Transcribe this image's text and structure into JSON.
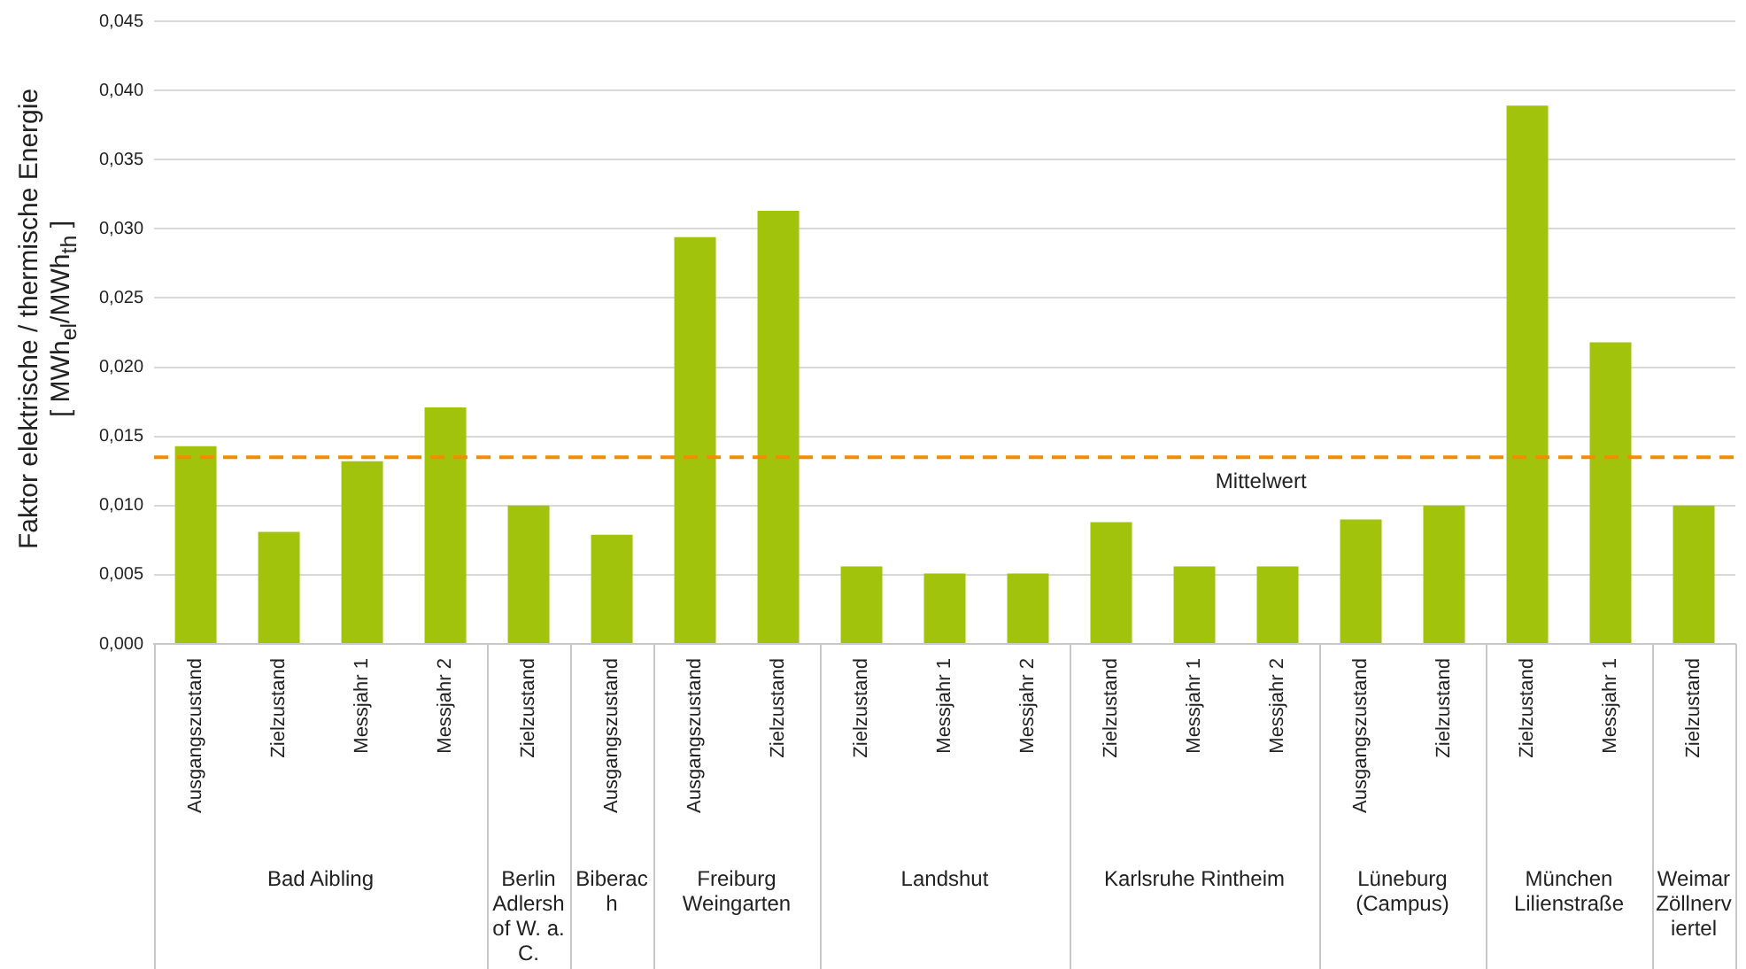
{
  "chart_data": {
    "type": "bar",
    "ylabel": "Faktor elektrische / thermische Energie\n[ MWh$_{el}$/MWh$_{th}$ ]",
    "categories": [
      "Ausgangszustand",
      "Zielzustand",
      "Messjahr 1",
      "Messjahr 2",
      "Zielzustand",
      "Ausgangszustand",
      "Ausgangszustand",
      "Zielzustand",
      "Zielzustand",
      "Messjahr 1",
      "Messjahr 2",
      "Zielzustand",
      "Messjahr 1",
      "Messjahr 2",
      "Ausgangszustand",
      "Zielzustand",
      "Zielzustand",
      "Messjahr 1",
      "Zielzustand"
    ],
    "series": [
      {
        "color": "#a2c30c",
        "values": [
          0.0143,
          0.0081,
          0.0132,
          0.0171,
          null,
          null,
          null,
          null,
          null,
          null,
          null,
          null,
          null,
          null,
          null,
          null,
          null,
          null,
          null
        ]
      },
      {
        "color": "#a2c30c",
        "values": [
          null,
          null,
          null,
          null,
          0.01,
          null,
          null,
          null,
          null,
          null,
          null,
          null,
          null,
          null,
          null,
          null,
          null,
          null,
          null
        ]
      },
      {
        "color": "#a2c30c",
        "values": [
          null,
          null,
          null,
          null,
          null,
          0.0079,
          null,
          null,
          null,
          null,
          null,
          null,
          null,
          null,
          null,
          null,
          null,
          null,
          null
        ]
      },
      {
        "color": "#a2c30c",
        "values": [
          null,
          null,
          null,
          null,
          null,
          null,
          0.0294,
          0.0313,
          null,
          null,
          null,
          null,
          null,
          null,
          null,
          null,
          null,
          null,
          null
        ]
      },
      {
        "color": "#a2c30c",
        "values": [
          null,
          null,
          null,
          null,
          null,
          null,
          null,
          null,
          0.0056,
          0.0051,
          0.0051,
          null,
          null,
          null,
          null,
          null,
          null,
          null,
          null
        ]
      },
      {
        "color": "#a2c30c",
        "values": [
          null,
          null,
          null,
          null,
          null,
          null,
          null,
          null,
          null,
          null,
          null,
          0.0088,
          0.0056,
          0.0056,
          null,
          null,
          null,
          null,
          null
        ]
      },
      {
        "color": "#a2c30c",
        "values": [
          null,
          null,
          null,
          null,
          null,
          null,
          null,
          null,
          null,
          null,
          null,
          null,
          null,
          null,
          0.009,
          0.01,
          null,
          null,
          null
        ]
      },
      {
        "color": "#a2c30c",
        "values": [
          null,
          null,
          null,
          null,
          null,
          null,
          null,
          null,
          null,
          null,
          null,
          null,
          null,
          null,
          null,
          null,
          0.0389,
          0.0218,
          null
        ]
      },
      {
        "color": "#a2c30c",
        "values": [
          null,
          null,
          null,
          null,
          null,
          null,
          null,
          null,
          null,
          null,
          null,
          null,
          null,
          null,
          null,
          null,
          null,
          null,
          0.01
        ]
      }
    ],
    "annotations": [
      "Bad Aibling",
      "Berlin Adlershof W. a. C.",
      "Biberach",
      "Freiburg Weingarten",
      "Landshut",
      "Karlsruhe Rintheim",
      "Lüneburg (Campus)",
      "München Lilienstraße",
      "Weimar Zöllnerviertel"
    ],
    "ylim": [
      0,
      0.045
    ],
    "yticks": [
      {
        "value": 0,
        "label": "0,000"
      },
      {
        "value": 0.005,
        "label": "0,005"
      },
      {
        "value": 0.01,
        "label": "0,010"
      },
      {
        "value": 0.015,
        "label": "0,015"
      },
      {
        "value": 0.02,
        "label": "0,020"
      },
      {
        "value": 0.025,
        "label": "0,025"
      },
      {
        "value": 0.03,
        "label": "0,030"
      },
      {
        "value": 0.035,
        "label": "0,035"
      },
      {
        "value": 0.04,
        "label": "0,040"
      },
      {
        "value": 0.045,
        "label": "0,045"
      }
    ],
    "ref_lines": [
      {
        "axis": "y",
        "value": 0.0135,
        "label": "Mittelwert",
        "color": "#f28c00",
        "line_style": "dashed"
      }
    ],
    "grid": "y",
    "legend": false
  }
}
